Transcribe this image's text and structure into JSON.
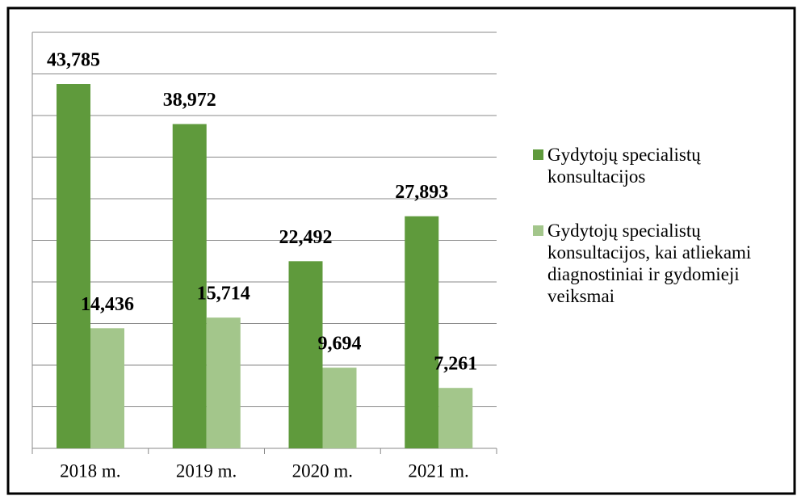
{
  "chart_data": {
    "type": "bar",
    "categories": [
      "2018 m.",
      "2019 m.",
      "2020 m.",
      "2021 m."
    ],
    "series": [
      {
        "name": "Gydytojų specialistų konsultacijos",
        "color": "#5f9a3c",
        "values": [
          43785,
          38972,
          22492,
          27893
        ],
        "value_labels": [
          "43,785",
          "38,972",
          "22,492",
          "27,893"
        ]
      },
      {
        "name": "Gydytojų specialistų konsultacijos, kai atliekami diagnostiniai ir gydomieji veiksmai",
        "color": "#a3c68b",
        "values": [
          14436,
          15714,
          9694,
          7261
        ],
        "value_labels": [
          "14,436",
          "15,714",
          "9,694",
          "7,261"
        ]
      }
    ],
    "ylim": [
      0,
      50000
    ],
    "yticks": [
      0,
      5000,
      10000,
      15000,
      20000,
      25000,
      30000,
      35000,
      40000,
      45000,
      50000
    ],
    "grid": true,
    "legend": "right"
  }
}
